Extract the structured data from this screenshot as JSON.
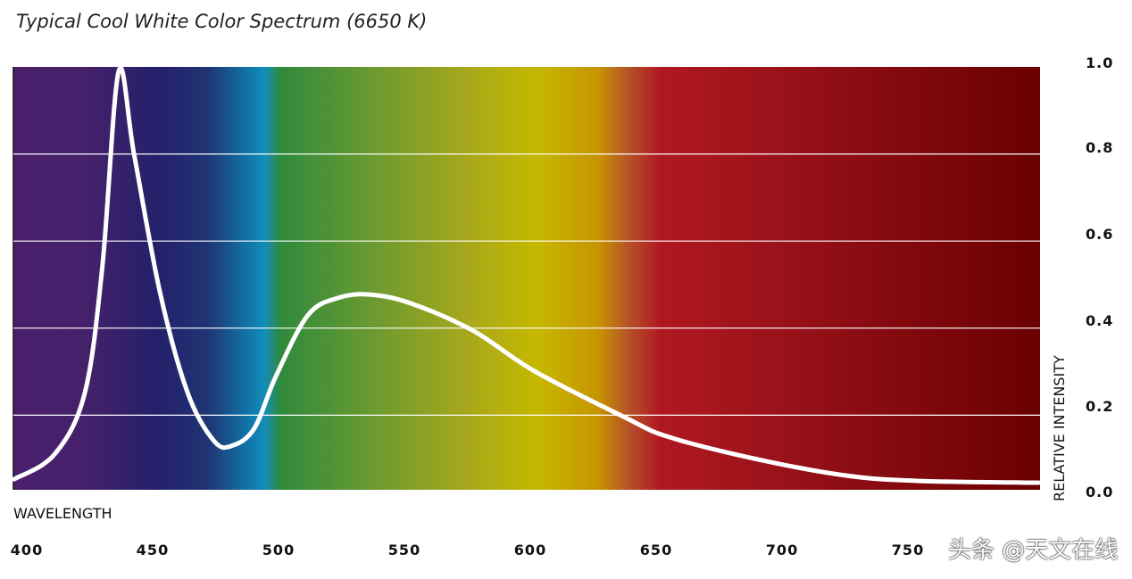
{
  "chart_data": {
    "type": "line",
    "title": "Typical Cool White Color Spectrum (6650 K)",
    "xlabel": "WAVELENGTH",
    "ylabel": "RELATIVE INTENSITY",
    "xlim": [
      395,
      802
    ],
    "ylim": [
      0,
      1.0
    ],
    "x_ticks": [
      "400",
      "450",
      "500",
      "550",
      "600",
      "650",
      "700",
      "750"
    ],
    "y_ticks": [
      "1.0",
      "0.8",
      "0.6",
      "0.4",
      "0.2",
      "0.0"
    ],
    "grid": true,
    "series": [
      {
        "name": "Cool White 6650 K",
        "x": [
          395,
          411,
          423,
          430,
          436.5,
          442.6,
          453,
          464,
          474.5,
          481.6,
          490.4,
          499,
          511.7,
          524,
          536.5,
          552.5,
          577,
          602,
          637.6,
          655,
          690.8,
          726,
          754.6,
          802
        ],
        "y": [
          0.053,
          0.11,
          0.25,
          0.54,
          0.99,
          0.8,
          0.48,
          0.25,
          0.14,
          0.13,
          0.17,
          0.29,
          0.43,
          0.47,
          0.477,
          0.457,
          0.395,
          0.3,
          0.195,
          0.15,
          0.098,
          0.061,
          0.049,
          0.045
        ]
      }
    ],
    "colors": {
      "line": "#ffffff",
      "grid": "#ffffff"
    }
  },
  "watermark": "头条 @天文在线"
}
